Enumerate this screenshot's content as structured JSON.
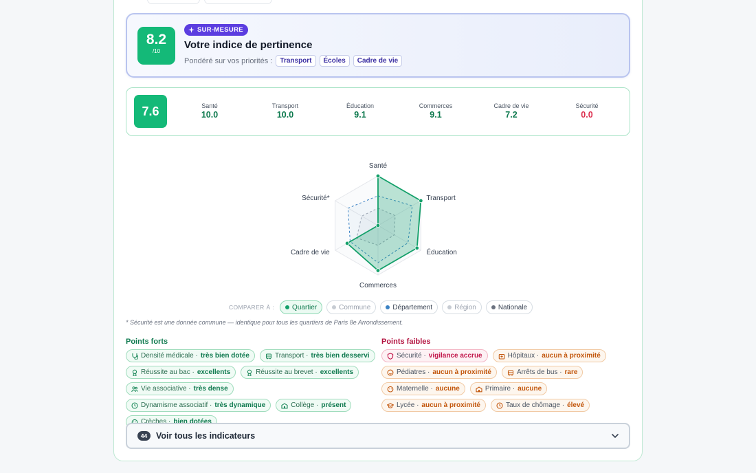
{
  "hero": {
    "score": "8.2",
    "score_out_of": "/10",
    "badge": "SUR-MESURE",
    "title": "Votre indice de pertinence",
    "weighted_label": "Pondéré sur vos priorités :",
    "priorities": [
      "Transport",
      "Écoles",
      "Cadre de vie"
    ]
  },
  "scores": {
    "overall": "7.6",
    "items": [
      {
        "label": "Santé",
        "value": "10.0"
      },
      {
        "label": "Transport",
        "value": "10.0"
      },
      {
        "label": "Éducation",
        "value": "9.1"
      },
      {
        "label": "Commerces",
        "value": "9.1"
      },
      {
        "label": "Cadre de vie",
        "value": "7.2"
      },
      {
        "label": "Sécurité",
        "value": "0.0"
      }
    ]
  },
  "colors": {
    "good": "#0f7a4f",
    "bad": "#dc2f4e",
    "accent": "#14b978",
    "badge": "#5b3de0"
  },
  "chart_data": {
    "type": "radar",
    "axes": [
      "Santé",
      "Transport",
      "Éducation",
      "Commerces",
      "Cadre de vie",
      "Sécurité*"
    ],
    "range": [
      0,
      10
    ],
    "series": [
      {
        "name": "Quartier",
        "values": [
          10.0,
          10.0,
          9.1,
          9.1,
          7.2,
          0.0
        ],
        "color": "#14a06a"
      },
      {
        "name": "Département",
        "values": [
          6.0,
          8.0,
          7.0,
          7.5,
          6.5,
          7.0
        ],
        "color": "#3b82c4"
      },
      {
        "name": "Nationale",
        "values": [
          3.5,
          4.0,
          3.8,
          4.0,
          5.0,
          3.8
        ],
        "color": "#9ca3af"
      }
    ]
  },
  "compare": {
    "label": "COMPARER À :",
    "options": [
      {
        "label": "Quartier",
        "state": "on",
        "color": "#14a06a"
      },
      {
        "label": "Commune",
        "state": "off",
        "color": "#c7ccd3"
      },
      {
        "label": "Département",
        "state": "on",
        "color": "#3b82c4"
      },
      {
        "label": "Région",
        "state": "off",
        "color": "#c7ccd3"
      },
      {
        "label": "Nationale",
        "state": "on",
        "color": "#6b7280"
      }
    ]
  },
  "note": "* Sécurité est une donnée commune — identique pour tous les quartiers de Paris 8e Arrondissement.",
  "strengths": {
    "title": "Points forts",
    "items": [
      {
        "icon": "stethoscope-icon",
        "name": "Densité médicale",
        "level": "très bien dotée"
      },
      {
        "icon": "bus-icon",
        "name": "Transport",
        "level": "très bien desservi"
      },
      {
        "icon": "award-icon",
        "name": "Réussite au bac",
        "level": "excellents"
      },
      {
        "icon": "award-icon",
        "name": "Réussite au brevet",
        "level": "excellents"
      },
      {
        "icon": "people-icon",
        "name": "Vie associative",
        "level": "très dense"
      },
      {
        "icon": "clock-icon",
        "name": "Dynamisme associatif",
        "level": "très dynamique"
      },
      {
        "icon": "school-icon",
        "name": "Collège",
        "level": "présent"
      },
      {
        "icon": "baby-icon",
        "name": "Crèches",
        "level": "bien dotées"
      }
    ]
  },
  "weaknesses": {
    "title": "Points faibles",
    "items": [
      {
        "icon": "shield-icon",
        "name": "Sécurité",
        "level": "vigilance accrue",
        "tone": "pink"
      },
      {
        "icon": "hospital-icon",
        "name": "Hôpitaux",
        "level": "aucun à proximité",
        "tone": "orange"
      },
      {
        "icon": "child-icon",
        "name": "Pédiatres",
        "level": "aucun à proximité",
        "tone": "orange"
      },
      {
        "icon": "bus-icon",
        "name": "Arrêts de bus",
        "level": "rare",
        "tone": "orange"
      },
      {
        "icon": "baby-icon",
        "name": "Maternelle",
        "level": "aucune",
        "tone": "orange"
      },
      {
        "icon": "school-icon",
        "name": "Primaire",
        "level": "aucune",
        "tone": "orange"
      },
      {
        "icon": "graduation-icon",
        "name": "Lycée",
        "level": "aucun à proximité",
        "tone": "orange"
      },
      {
        "icon": "clock-icon",
        "name": "Taux de chômage",
        "level": "élevé",
        "tone": "orange"
      }
    ]
  },
  "accordion": {
    "count": "44",
    "title": "Voir tous les indicateurs"
  }
}
